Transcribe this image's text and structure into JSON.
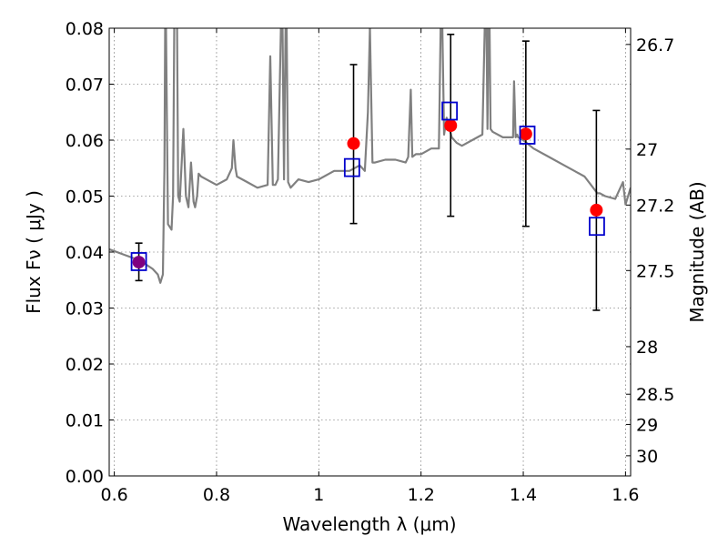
{
  "chart_data": {
    "type": "line",
    "xlabel": "Wavelength  λ (μm)",
    "ylabel": "Flux  Fν  ( μJy )",
    "ylabel_right": "Magnitude (AB)",
    "xlim": [
      0.59,
      1.61
    ],
    "ylim": [
      0.0,
      0.08
    ],
    "grid": true,
    "x_ticks": [
      0.6,
      0.8,
      1.0,
      1.2,
      1.4,
      1.6
    ],
    "x_tick_labels": [
      "0.6",
      "0.8",
      "1",
      "1.2",
      "1.4",
      "1.6"
    ],
    "y_ticks": [
      0.0,
      0.01,
      0.02,
      0.03,
      0.04,
      0.05,
      0.06,
      0.07,
      0.08
    ],
    "y_tick_labels": [
      "0.00",
      "0.01",
      "0.02",
      "0.03",
      "0.04",
      "0.05",
      "0.06",
      "0.07",
      "0.08"
    ],
    "right_ticks": [
      {
        "label": "26.7",
        "flux": 0.0771
      },
      {
        "label": "27",
        "flux": 0.0584
      },
      {
        "label": "27.2",
        "flux": 0.0484
      },
      {
        "label": "27.5",
        "flux": 0.0367
      },
      {
        "label": "28",
        "flux": 0.0231
      },
      {
        "label": "28.5",
        "flux": 0.0146
      },
      {
        "label": "29",
        "flux": 0.0092
      },
      {
        "label": "30",
        "flux": 0.0036
      }
    ],
    "colors": {
      "spectrum": "#808080",
      "observed": "#ff0000",
      "model": "#0000cc",
      "errorbar": "#000000",
      "overlap": "#800080"
    },
    "series": [
      {
        "kind": "spectrum",
        "x": [
          0.59,
          0.62,
          0.65,
          0.675,
          0.685,
          0.69,
          0.695,
          0.698,
          0.7,
          0.705,
          0.712,
          0.715,
          0.718,
          0.722,
          0.725,
          0.728,
          0.735,
          0.74,
          0.745,
          0.75,
          0.755,
          0.758,
          0.762,
          0.765,
          0.77,
          0.78,
          0.8,
          0.82,
          0.83,
          0.833,
          0.837,
          0.84,
          0.86,
          0.88,
          0.9,
          0.905,
          0.91,
          0.915,
          0.92,
          0.928,
          0.932,
          0.936,
          0.94,
          0.945,
          0.96,
          0.98,
          1.0,
          1.03,
          1.06,
          1.08,
          1.09,
          1.096,
          1.1,
          1.105,
          1.11,
          1.13,
          1.15,
          1.17,
          1.175,
          1.18,
          1.183,
          1.19,
          1.2,
          1.22,
          1.235,
          1.24,
          1.245,
          1.25,
          1.26,
          1.27,
          1.28,
          1.3,
          1.32,
          1.327,
          1.33,
          1.333,
          1.336,
          1.34,
          1.36,
          1.38,
          1.382,
          1.385,
          1.388,
          1.39,
          1.4,
          1.42,
          1.45,
          1.48,
          1.5,
          1.52,
          1.545,
          1.55,
          1.56,
          1.58,
          1.595,
          1.6,
          1.61
        ],
        "y": [
          0.0405,
          0.0395,
          0.0385,
          0.037,
          0.036,
          0.0345,
          0.036,
          0.055,
          0.09,
          0.045,
          0.044,
          0.05,
          0.09,
          0.09,
          0.05,
          0.049,
          0.062,
          0.05,
          0.048,
          0.056,
          0.049,
          0.048,
          0.05,
          0.054,
          0.0535,
          0.053,
          0.052,
          0.053,
          0.055,
          0.06,
          0.055,
          0.0535,
          0.0525,
          0.0515,
          0.052,
          0.075,
          0.052,
          0.052,
          0.053,
          0.09,
          0.053,
          0.09,
          0.0525,
          0.0515,
          0.053,
          0.0525,
          0.053,
          0.0545,
          0.0545,
          0.0555,
          0.0545,
          0.065,
          0.08,
          0.056,
          0.056,
          0.0565,
          0.0565,
          0.056,
          0.057,
          0.069,
          0.057,
          0.0575,
          0.0575,
          0.0585,
          0.0585,
          0.09,
          0.061,
          0.064,
          0.0605,
          0.0595,
          0.059,
          0.06,
          0.061,
          0.09,
          0.062,
          0.09,
          0.062,
          0.0615,
          0.0605,
          0.0605,
          0.0705,
          0.0605,
          0.061,
          0.0605,
          0.06,
          0.0585,
          0.057,
          0.0555,
          0.0545,
          0.0535,
          0.0505,
          0.0505,
          0.05,
          0.0495,
          0.0525,
          0.0485,
          0.0515
        ]
      },
      {
        "kind": "observed",
        "x": [
          0.648,
          1.068,
          1.258,
          1.405,
          1.543
        ],
        "y": [
          0.0382,
          0.0594,
          0.0626,
          0.0611,
          0.0475
        ],
        "err_low": [
          0.0349,
          0.0451,
          0.0464,
          0.0446,
          0.0296
        ],
        "err_high": [
          0.0416,
          0.0735,
          0.0789,
          0.0777,
          0.0653
        ]
      },
      {
        "kind": "model",
        "x": [
          0.648,
          1.065,
          1.256,
          1.408,
          1.544
        ],
        "y": [
          0.0383,
          0.0551,
          0.0652,
          0.0609,
          0.0446
        ]
      }
    ]
  }
}
